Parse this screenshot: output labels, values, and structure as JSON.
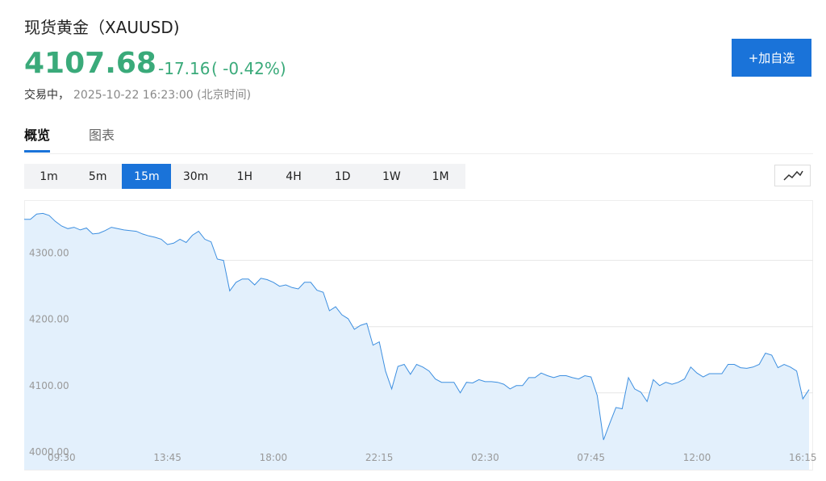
{
  "header": {
    "title": "现货黄金（XAUUSD)",
    "price": "4107.68",
    "change": "-17.16",
    "change_pct": "( -0.42%)",
    "status": "交易中，",
    "time": "2025-10-22 16:23:00 (北京时间)",
    "button": "+加自选"
  },
  "tabs": {
    "items": [
      "概览",
      "图表"
    ],
    "active_index": 0
  },
  "intervals": {
    "items": [
      "1m",
      "5m",
      "15m",
      "30m",
      "1H",
      "4H",
      "1D",
      "1W",
      "1M"
    ],
    "active_index": 2
  },
  "chart_data": {
    "type": "line",
    "color": "#3d8fe0",
    "fill": "#e3f0fc",
    "grid": true,
    "ylim": [
      3984,
      4391
    ],
    "yticks": [
      {
        "value": 4000,
        "label": "4000.00"
      },
      {
        "value": 4100,
        "label": "4100.00"
      },
      {
        "value": 4200,
        "label": "4200.00"
      },
      {
        "value": 4300,
        "label": "4300.00"
      }
    ],
    "categories": [
      null,
      null,
      null,
      null,
      null,
      null,
      "09:30",
      null,
      null,
      null,
      null,
      null,
      null,
      null,
      null,
      null,
      null,
      null,
      null,
      null,
      null,
      null,
      null,
      "13:45",
      null,
      null,
      null,
      null,
      null,
      null,
      null,
      null,
      null,
      null,
      null,
      null,
      null,
      null,
      null,
      null,
      "18:00",
      null,
      null,
      null,
      null,
      null,
      null,
      null,
      null,
      null,
      null,
      null,
      null,
      null,
      null,
      null,
      null,
      "22:15",
      null,
      null,
      null,
      null,
      null,
      null,
      null,
      null,
      null,
      null,
      null,
      null,
      null,
      null,
      null,
      null,
      "02:30",
      null,
      null,
      null,
      null,
      null,
      null,
      null,
      null,
      null,
      null,
      null,
      null,
      null,
      null,
      null,
      null,
      "07:45",
      null,
      null,
      null,
      null,
      null,
      null,
      null,
      null,
      null,
      null,
      null,
      null,
      null,
      null,
      null,
      null,
      "12:00",
      null,
      null,
      null,
      null,
      null,
      null,
      null,
      null,
      null,
      null,
      null,
      null,
      null,
      null,
      null,
      null,
      "16:15",
      null
    ],
    "series": [
      {
        "name": "XAUUSD",
        "values": [
          4362,
          4362,
          4370,
          4371,
          4368,
          4359,
          4352,
          4348,
          4350,
          4346,
          4349,
          4340,
          4341,
          4345,
          4350,
          4348,
          4346,
          4345,
          4344,
          4340,
          4337,
          4335,
          4332,
          4324,
          4326,
          4332,
          4327,
          4338,
          4344,
          4332,
          4328,
          4302,
          4300,
          4254,
          4267,
          4272,
          4272,
          4263,
          4273,
          4271,
          4267,
          4261,
          4263,
          4259,
          4257,
          4267,
          4267,
          4255,
          4252,
          4224,
          4230,
          4218,
          4212,
          4196,
          4202,
          4205,
          4172,
          4177,
          4133,
          4106,
          4140,
          4143,
          4128,
          4143,
          4139,
          4133,
          4121,
          4116,
          4116,
          4116,
          4100,
          4116,
          4115,
          4120,
          4117,
          4117,
          4116,
          4113,
          4106,
          4111,
          4111,
          4123,
          4123,
          4130,
          4126,
          4123,
          4126,
          4126,
          4123,
          4121,
          4126,
          4124,
          4096,
          4029,
          4054,
          4078,
          4076,
          4123,
          4106,
          4101,
          4087,
          4120,
          4111,
          4116,
          4113,
          4116,
          4121,
          4139,
          4130,
          4124,
          4129,
          4129,
          4129,
          4143,
          4143,
          4138,
          4137,
          4139,
          4143,
          4160,
          4157,
          4138,
          4143,
          4139,
          4133,
          4091,
          4105
        ]
      }
    ]
  }
}
